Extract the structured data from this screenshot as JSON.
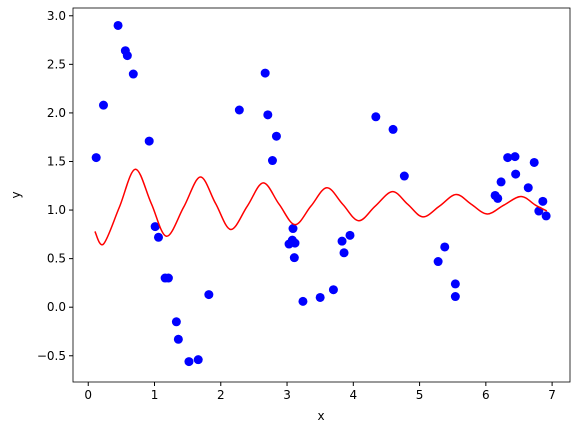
{
  "chart_data": {
    "type": "scatter",
    "x_label": "x",
    "y_label": "y",
    "xlim": [
      -0.23,
      7.27
    ],
    "ylim": [
      -0.77,
      3.08
    ],
    "xticks": [
      0,
      1,
      2,
      3,
      4,
      5,
      6,
      7
    ],
    "yticks": [
      {
        "value": -0.5,
        "label": "−0.5"
      },
      {
        "value": 0,
        "label": "0.0"
      },
      {
        "value": 0.5,
        "label": "0.5"
      },
      {
        "value": 1,
        "label": "1.0"
      },
      {
        "value": 1.5,
        "label": "1.5"
      },
      {
        "value": 2,
        "label": "2.0"
      },
      {
        "value": 2.5,
        "label": "2.5"
      },
      {
        "value": 3,
        "label": "3.0"
      }
    ],
    "series": [
      {
        "type": "scatter",
        "color": "#0000ff",
        "x": [
          0.12,
          0.23,
          0.45,
          0.56,
          0.59,
          0.68,
          0.92,
          1.01,
          1.06,
          1.16,
          1.21,
          1.33,
          1.36,
          1.52,
          1.66,
          1.82,
          2.28,
          2.67,
          2.71,
          2.78,
          2.84,
          3.03,
          3.08,
          3.09,
          3.11,
          3.12,
          3.24,
          3.5,
          3.7,
          3.83,
          3.86,
          3.95,
          4.34,
          4.6,
          4.77,
          5.28,
          5.38,
          5.54,
          5.54,
          6.14,
          6.18,
          6.23,
          6.33,
          6.44,
          6.45,
          6.64,
          6.73,
          6.8,
          6.86,
          6.91
        ],
        "values": [
          1.54,
          2.08,
          2.9,
          2.64,
          2.59,
          2.4,
          1.71,
          0.83,
          0.72,
          0.3,
          0.3,
          -0.15,
          -0.33,
          -0.56,
          -0.54,
          0.13,
          2.03,
          2.41,
          1.98,
          1.51,
          1.76,
          0.65,
          0.69,
          0.81,
          0.51,
          0.66,
          0.06,
          0.1,
          0.18,
          0.68,
          0.56,
          0.74,
          1.96,
          1.83,
          1.35,
          0.47,
          0.62,
          0.24,
          0.11,
          1.15,
          1.12,
          1.29,
          1.54,
          1.55,
          1.37,
          1.23,
          1.49,
          0.99,
          1.09,
          0.94
        ]
      },
      {
        "type": "line",
        "color": "#ff0000",
        "x": [
          0.1,
          0.23,
          0.47,
          0.71,
          0.95,
          1.18,
          1.44,
          1.69,
          1.92,
          2.15,
          2.4,
          2.64,
          2.88,
          3.12,
          3.36,
          3.6,
          3.84,
          4.08,
          4.33,
          4.59,
          4.82,
          5.05,
          5.3,
          5.55,
          5.78,
          6.02,
          6.27,
          6.53,
          6.75,
          6.92
        ],
        "values": [
          0.78,
          0.65,
          1.03,
          1.42,
          1.07,
          0.73,
          1.03,
          1.34,
          1.07,
          0.8,
          1.04,
          1.28,
          1.06,
          0.85,
          1.04,
          1.23,
          1.06,
          0.89,
          1.04,
          1.19,
          1.06,
          0.93,
          1.04,
          1.16,
          1.06,
          0.96,
          1.05,
          1.14,
          1.05,
          0.99
        ]
      }
    ]
  }
}
